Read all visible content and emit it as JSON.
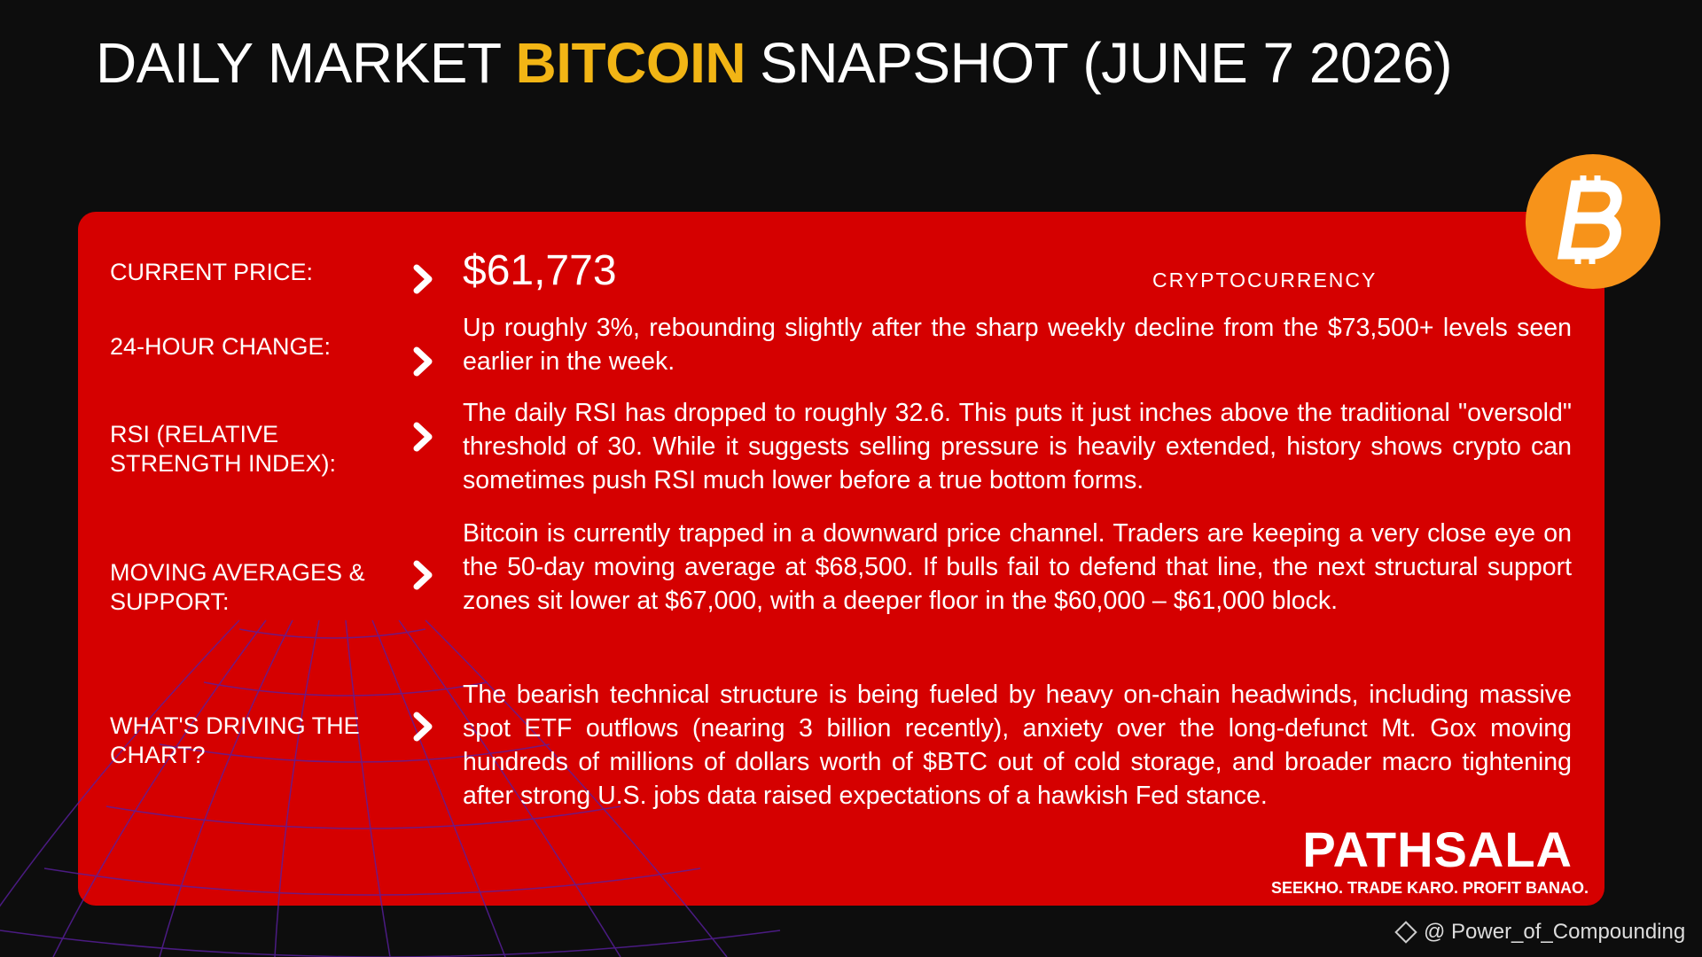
{
  "header": {
    "title_parts": [
      "DAILY MARKET",
      "BITCOIN",
      "SNAPSHOT (JUNE 7 2026)"
    ]
  },
  "card": {
    "tag": "CRYPTOCURRENCY",
    "rows": [
      {
        "label": "CURRENT PRICE:",
        "value": "$61,773"
      },
      {
        "label": "24-HOUR CHANGE:",
        "value": "Up roughly 3%, rebounding slightly after the sharp weekly decline from the $73,500+ levels seen earlier in the week."
      },
      {
        "label": "RSI (RELATIVE STRENGTH INDEX):",
        "value": "The daily RSI has dropped to roughly 32.6. This puts it just inches above the traditional \"oversold\" threshold of 30. While it suggests selling pressure is heavily extended, history shows crypto can sometimes push RSI much lower before a true bottom forms."
      },
      {
        "label": "MOVING AVERAGES & SUPPORT:",
        "value": "Bitcoin is currently trapped in a downward price channel. Traders are keeping a very close eye on the 50-day moving average at $68,500. If bulls fail to defend that line, the next structural support zones sit lower at $67,000, with a deeper floor in the $60,000 – $61,000 block."
      },
      {
        "label": "WHAT'S DRIVING THE CHART?",
        "value": "The bearish technical structure is being fueled by heavy on-chain headwinds, including massive spot ETF outflows (nearing 3 billion recently), anxiety over the long-defunct Mt. Gox moving hundreds of millions of dollars worth of $BTC out of cold storage, and broader macro tightening after strong U.S. jobs data raised expectations of a hawkish Fed stance."
      }
    ]
  },
  "brand": {
    "name": "PATHSALA",
    "tagline": "SEEKHO. TRADE KARO. PROFIT BANAO."
  },
  "watermark": "@ Power_of_Compounding"
}
